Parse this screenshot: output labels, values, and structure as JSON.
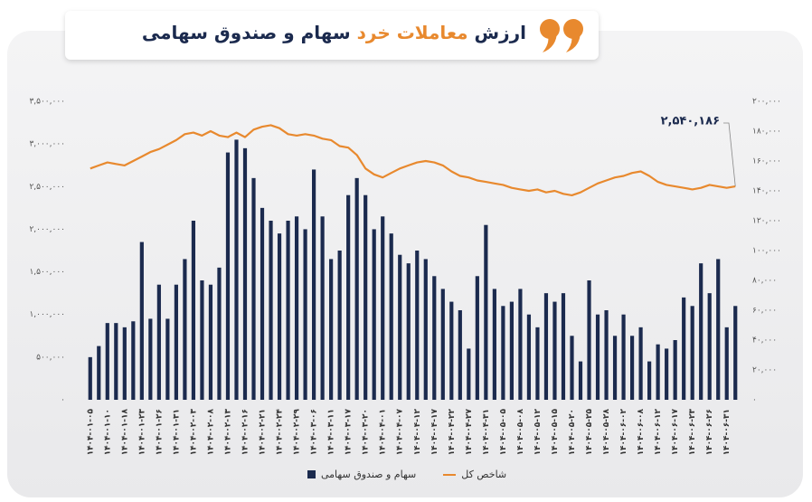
{
  "chart_data": {
    "type": "bar_line",
    "title_segments": [
      {
        "text": "ارزش ",
        "color": "#1b2a4e"
      },
      {
        "text": "معاملات خرد",
        "color": "#e8892e"
      },
      {
        "text": " سهام و صندوق سهامی",
        "color": "#1b2a4e"
      }
    ],
    "categories": [
      "۱۴۰۴-۰۱-۰۵",
      null,
      "۱۴۰۴-۰۱-۱۰",
      null,
      "۱۴۰۴-۰۱-۱۸",
      null,
      "۱۴۰۴-۰۱-۲۳",
      null,
      "۱۴۰۴-۰۱-۲۶",
      null,
      "۱۴۰۴-۰۱-۳۱",
      null,
      "۱۴۰۴-۰۲-۰۳",
      null,
      "۱۴۰۴-۰۲-۰۸",
      null,
      "۱۴۰۴-۰۲-۱۳",
      null,
      "۱۴۰۴-۰۲-۱۶",
      null,
      "۱۴۰۴-۰۲-۲۱",
      null,
      "۱۴۰۴-۰۲-۲۴",
      null,
      "۱۴۰۴-۰۲-۲۹",
      null,
      "۱۴۰۴-۰۳-۰۶",
      null,
      "۱۴۰۴-۰۳-۱۱",
      null,
      "۱۴۰۴-۰۳-۱۷",
      null,
      "۱۴۰۴-۰۳-۲۰",
      null,
      "۱۴۰۴-۰۴-۰۱",
      null,
      "۱۴۰۴-۰۴-۰۷",
      null,
      "۱۴۰۴-۰۴-۱۲",
      null,
      "۱۴۰۴-۰۴-۱۷",
      null,
      "۱۴۰۴-۰۴-۲۲",
      null,
      "۱۴۰۴-۰۴-۲۷",
      null,
      "۱۴۰۴-۰۴-۳۱",
      null,
      "۱۴۰۴-۰۵-۰۵",
      null,
      "۱۴۰۴-۰۵-۰۸",
      null,
      "۱۴۰۴-۰۵-۱۲",
      null,
      "۱۴۰۴-۰۵-۱۵",
      null,
      "۱۴۰۴-۰۵-۲۰",
      null,
      "۱۴۰۴-۰۵-۲۵",
      null,
      "۱۴۰۴-۰۵-۲۸",
      null,
      "۱۴۰۴-۰۶-۰۲",
      null,
      "۱۴۰۴-۰۶-۰۸",
      null,
      "۱۴۰۴-۰۶-۱۲",
      null,
      "۱۴۰۴-۰۶-۱۷",
      null,
      "۱۴۰۴-۰۶-۲۳",
      null,
      "۱۴۰۴-۰۶-۲۶",
      null,
      "۱۴۰۴-۰۶-۳۱",
      null
    ],
    "series": [
      {
        "name": "سهام و صندوق سهامی",
        "color": "#1b2a4e",
        "type": "bar",
        "axis": "y",
        "values": [
          500000,
          630000,
          900000,
          900000,
          850000,
          920000,
          1850000,
          950000,
          1350000,
          950000,
          1350000,
          1650000,
          2100000,
          1400000,
          1350000,
          1550000,
          2900000,
          3050000,
          2950000,
          2600000,
          2250000,
          2100000,
          1950000,
          2100000,
          2150000,
          2000000,
          2700000,
          2150000,
          1650000,
          1750000,
          2400000,
          2600000,
          2400000,
          2000000,
          2150000,
          1950000,
          1700000,
          1600000,
          1750000,
          1650000,
          1450000,
          1300000,
          1150000,
          1050000,
          600000,
          1450000,
          2050000,
          1300000,
          1100000,
          1150000,
          1300000,
          1000000,
          850000,
          1250000,
          1150000,
          1250000,
          750000,
          450000,
          1400000,
          1000000,
          1050000,
          750000,
          1000000,
          750000,
          850000,
          450000,
          650000,
          600000,
          700000,
          1200000,
          1100000,
          1600000,
          1250000,
          1650000,
          850000,
          1100000
        ]
      },
      {
        "name": "شاخص کل",
        "color": "#e8892e",
        "type": "line",
        "axis": "y2",
        "values": [
          155000,
          157000,
          159000,
          158000,
          157000,
          160000,
          163000,
          166000,
          168000,
          171000,
          174000,
          178000,
          179000,
          177000,
          180000,
          177000,
          176000,
          179000,
          176000,
          181000,
          183000,
          184000,
          182000,
          178000,
          177000,
          178000,
          177000,
          175000,
          174000,
          170000,
          169000,
          164000,
          155000,
          151000,
          149000,
          152000,
          155000,
          157000,
          159000,
          160000,
          159000,
          157000,
          153000,
          150000,
          149000,
          147000,
          146000,
          145000,
          144000,
          142000,
          141000,
          140000,
          141000,
          139000,
          140000,
          138000,
          137000,
          139000,
          142000,
          145000,
          147000,
          149000,
          150000,
          152000,
          153000,
          150000,
          146000,
          144000,
          143000,
          142000,
          141000,
          142000,
          144000,
          143000,
          142000,
          143000
        ]
      }
    ],
    "annotation": "۲,۵۴۰,۱۸۶",
    "ylim": [
      0,
      3500000
    ],
    "yticks": [
      {
        "value": 0,
        "label": "۰"
      },
      {
        "value": 500000,
        "label": "۵۰۰,۰۰۰"
      },
      {
        "value": 1000000,
        "label": "۱,۰۰۰,۰۰۰"
      },
      {
        "value": 1500000,
        "label": "۱,۵۰۰,۰۰۰"
      },
      {
        "value": 2000000,
        "label": "۲,۰۰۰,۰۰۰"
      },
      {
        "value": 2500000,
        "label": "۲,۵۰۰,۰۰۰"
      },
      {
        "value": 3000000,
        "label": "۳,۰۰۰,۰۰۰"
      },
      {
        "value": 3500000,
        "label": "۳,۵۰۰,۰۰۰"
      }
    ],
    "y2lim": [
      0,
      200000
    ],
    "y2ticks": [
      {
        "value": 0,
        "label": "۰"
      },
      {
        "value": 20000,
        "label": "۲۰,۰۰۰"
      },
      {
        "value": 40000,
        "label": "۴۰,۰۰۰"
      },
      {
        "value": 60000,
        "label": "۶۰,۰۰۰"
      },
      {
        "value": 80000,
        "label": "۸۰,۰۰۰"
      },
      {
        "value": 100000,
        "label": "۱۰۰,۰۰۰"
      },
      {
        "value": 120000,
        "label": "۱۲۰,۰۰۰"
      },
      {
        "value": 140000,
        "label": "۱۴۰,۰۰۰"
      },
      {
        "value": 160000,
        "label": "۱۶۰,۰۰۰"
      },
      {
        "value": 180000,
        "label": "۱۸۰,۰۰۰"
      },
      {
        "value": 200000,
        "label": "۲۰۰,۰۰۰"
      }
    ],
    "grid": false
  }
}
